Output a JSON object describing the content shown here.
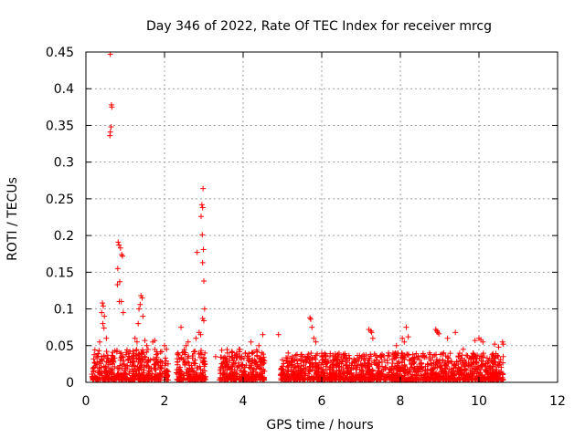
{
  "chart_data": {
    "type": "scatter",
    "title": "Day 346 of 2022, Rate Of TEC Index for receiver mrcg",
    "xlabel": "GPS time / hours",
    "ylabel": "ROTI / TECUs",
    "xlim": [
      0,
      12
    ],
    "ylim": [
      0,
      0.45
    ],
    "xticks": [
      0,
      2,
      4,
      6,
      8,
      10,
      12
    ],
    "xtick_labels": [
      "0",
      "2",
      "4",
      "6",
      "8",
      "10",
      "12"
    ],
    "yticks": [
      0,
      0.05,
      0.1,
      0.15,
      0.2,
      0.25,
      0.3,
      0.35,
      0.4,
      0.45
    ],
    "ytick_labels": [
      "0",
      "0.05",
      "0.1",
      "0.15",
      "0.2",
      "0.25",
      "0.3",
      "0.35",
      "0.4",
      "0.45"
    ],
    "grid": true,
    "marker": "+",
    "color": "#ff0000",
    "series": [
      {
        "name": "ROTI",
        "points": [
          [
            0.62,
            0.447
          ],
          [
            0.65,
            0.378
          ],
          [
            0.66,
            0.375
          ],
          [
            0.64,
            0.348
          ],
          [
            0.62,
            0.341
          ],
          [
            0.61,
            0.336
          ],
          [
            0.82,
            0.191
          ],
          [
            0.84,
            0.187
          ],
          [
            0.88,
            0.183
          ],
          [
            0.91,
            0.174
          ],
          [
            0.93,
            0.172
          ],
          [
            0.81,
            0.155
          ],
          [
            0.86,
            0.137
          ],
          [
            0.8,
            0.133
          ],
          [
            0.42,
            0.108
          ],
          [
            0.44,
            0.104
          ],
          [
            0.85,
            0.11
          ],
          [
            0.9,
            0.11
          ],
          [
            0.4,
            0.095
          ],
          [
            0.47,
            0.09
          ],
          [
            0.95,
            0.095
          ],
          [
            0.43,
            0.08
          ],
          [
            0.46,
            0.074
          ],
          [
            0.52,
            0.06
          ],
          [
            0.35,
            0.055
          ],
          [
            1.4,
            0.118
          ],
          [
            1.43,
            0.115
          ],
          [
            1.38,
            0.106
          ],
          [
            1.35,
            0.1
          ],
          [
            1.33,
            0.08
          ],
          [
            1.45,
            0.09
          ],
          [
            1.25,
            0.06
          ],
          [
            1.3,
            0.055
          ],
          [
            1.5,
            0.057
          ],
          [
            1.55,
            0.05
          ],
          [
            1.7,
            0.055
          ],
          [
            1.75,
            0.057
          ],
          [
            2.0,
            0.05
          ],
          [
            2.05,
            0.045
          ],
          [
            2.42,
            0.075
          ],
          [
            2.55,
            0.05
          ],
          [
            2.6,
            0.055
          ],
          [
            2.98,
            0.264
          ],
          [
            2.95,
            0.242
          ],
          [
            2.97,
            0.238
          ],
          [
            2.93,
            0.226
          ],
          [
            2.96,
            0.201
          ],
          [
            2.99,
            0.181
          ],
          [
            2.83,
            0.177
          ],
          [
            2.97,
            0.163
          ],
          [
            3.0,
            0.138
          ],
          [
            3.02,
            0.1
          ],
          [
            2.97,
            0.087
          ],
          [
            3.0,
            0.084
          ],
          [
            2.88,
            0.068
          ],
          [
            2.92,
            0.065
          ],
          [
            2.8,
            0.06
          ],
          [
            3.3,
            0.035
          ],
          [
            3.6,
            0.04
          ],
          [
            3.9,
            0.045
          ],
          [
            4.2,
            0.055
          ],
          [
            4.4,
            0.05
          ],
          [
            4.5,
            0.065
          ],
          [
            4.9,
            0.065
          ],
          [
            5.7,
            0.088
          ],
          [
            5.72,
            0.086
          ],
          [
            5.75,
            0.075
          ],
          [
            5.8,
            0.06
          ],
          [
            5.85,
            0.055
          ],
          [
            6.1,
            0.035
          ],
          [
            6.4,
            0.03
          ],
          [
            6.7,
            0.033
          ],
          [
            7.2,
            0.072
          ],
          [
            7.25,
            0.07
          ],
          [
            7.27,
            0.068
          ],
          [
            7.3,
            0.06
          ],
          [
            7.7,
            0.04
          ],
          [
            7.9,
            0.05
          ],
          [
            8.1,
            0.055
          ],
          [
            8.15,
            0.075
          ],
          [
            8.2,
            0.062
          ],
          [
            8.05,
            0.06
          ],
          [
            8.9,
            0.072
          ],
          [
            8.93,
            0.07
          ],
          [
            8.95,
            0.068
          ],
          [
            8.98,
            0.066
          ],
          [
            9.2,
            0.06
          ],
          [
            9.4,
            0.068
          ],
          [
            9.6,
            0.045
          ],
          [
            9.9,
            0.057
          ],
          [
            10.0,
            0.06
          ],
          [
            10.05,
            0.058
          ],
          [
            10.1,
            0.055
          ],
          [
            10.4,
            0.052
          ],
          [
            10.5,
            0.048
          ],
          [
            10.6,
            0.055
          ],
          [
            10.62,
            0.052
          ]
        ],
        "dense_bands": [
          {
            "x0": 0.15,
            "x1": 1.95,
            "ymin": 0.003,
            "ymax": 0.045
          },
          {
            "x0": 2.0,
            "x1": 2.1,
            "ymin": 0.003,
            "ymax": 0.035
          },
          {
            "x0": 2.3,
            "x1": 3.05,
            "ymin": 0.003,
            "ymax": 0.045
          },
          {
            "x0": 3.4,
            "x1": 4.55,
            "ymin": 0.003,
            "ymax": 0.045
          },
          {
            "x0": 4.95,
            "x1": 10.62,
            "ymin": 0.003,
            "ymax": 0.04
          }
        ]
      }
    ]
  }
}
